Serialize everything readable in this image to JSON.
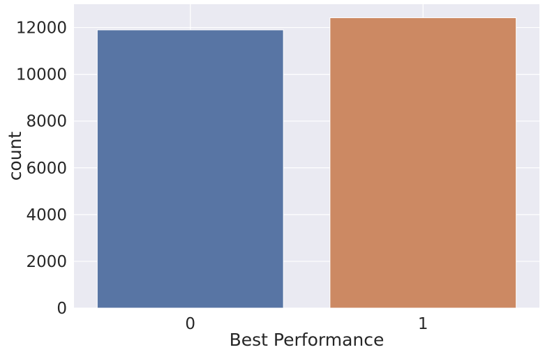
{
  "chart_data": {
    "type": "bar",
    "title": "",
    "xlabel": "Best Performance",
    "ylabel": "count",
    "categories": [
      "0",
      "1"
    ],
    "values": [
      11900,
      12420
    ],
    "bar_colors": [
      "#5875a4",
      "#cc8963"
    ],
    "ylim": [
      0,
      13000
    ],
    "yticks": [
      0,
      2000,
      4000,
      6000,
      8000,
      10000,
      12000
    ],
    "grid": true,
    "background": "#eaeaf2",
    "grid_color": "#ffffff"
  }
}
